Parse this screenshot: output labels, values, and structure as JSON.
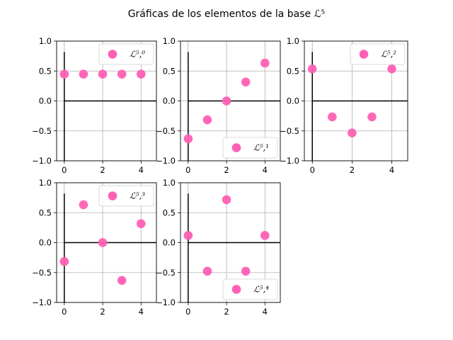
{
  "figure": {
    "title": "Gráficas de los elementos de la base ℒ⁵"
  },
  "colors": {
    "marker": "#ff5fb4",
    "grid": "#b0b0b0",
    "axis_lines": "#000000",
    "frame": "#000000"
  },
  "chart_data": [
    {
      "type": "scatter",
      "title": "",
      "legend": "ℒ⁵,⁰",
      "legend_loc": "upper right",
      "x": [
        0,
        1,
        2,
        3,
        4
      ],
      "y": [
        0.447,
        0.447,
        0.447,
        0.447,
        0.447
      ],
      "xlim": [
        -0.4,
        4.8
      ],
      "ylim": [
        -1.0,
        1.0
      ],
      "xticks": [
        "0",
        "2",
        "4"
      ],
      "yticks": [
        "1.0",
        "0.5",
        "0.0",
        "−0.5",
        "−1.0"
      ],
      "grid": true
    },
    {
      "type": "scatter",
      "title": "",
      "legend": "ℒ⁵,¹",
      "legend_loc": "lower right",
      "x": [
        0,
        1,
        2,
        3,
        4
      ],
      "y": [
        -0.632,
        -0.316,
        0.0,
        0.316,
        0.632
      ],
      "xlim": [
        -0.4,
        4.8
      ],
      "ylim": [
        -1.0,
        1.0
      ],
      "xticks": [
        "0",
        "2",
        "4"
      ],
      "yticks": [
        "1.0",
        "0.5",
        "0.0",
        "−0.5",
        "−1.0"
      ],
      "grid": true
    },
    {
      "type": "scatter",
      "title": "",
      "legend": "ℒ⁵,²",
      "legend_loc": "upper right",
      "x": [
        0,
        1,
        2,
        3,
        4
      ],
      "y": [
        0.535,
        -0.267,
        -0.535,
        -0.267,
        0.535
      ],
      "xlim": [
        -0.4,
        4.8
      ],
      "ylim": [
        -1.0,
        1.0
      ],
      "xticks": [
        "0",
        "2",
        "4"
      ],
      "yticks": [
        "1.0",
        "0.5",
        "0.0",
        "−0.5",
        "−1.0"
      ],
      "grid": true
    },
    {
      "type": "scatter",
      "title": "",
      "legend": "ℒ⁵,³",
      "legend_loc": "upper right",
      "x": [
        0,
        1,
        2,
        3,
        4
      ],
      "y": [
        -0.316,
        0.632,
        0.0,
        -0.632,
        0.316
      ],
      "xlim": [
        -0.4,
        4.8
      ],
      "ylim": [
        -1.0,
        1.0
      ],
      "xticks": [
        "0",
        "2",
        "4"
      ],
      "yticks": [
        "1.0",
        "0.5",
        "0.0",
        "−0.5",
        "−1.0"
      ],
      "grid": true
    },
    {
      "type": "scatter",
      "title": "",
      "legend": "ℒ⁵,⁴",
      "legend_loc": "lower right",
      "x": [
        0,
        1,
        2,
        3,
        4
      ],
      "y": [
        0.12,
        -0.478,
        0.717,
        -0.478,
        0.12
      ],
      "xlim": [
        -0.4,
        4.8
      ],
      "ylim": [
        -1.0,
        1.0
      ],
      "xticks": [
        "0",
        "2",
        "4"
      ],
      "yticks": [
        "1.0",
        "0.5",
        "0.0",
        "−0.5",
        "−1.0"
      ],
      "grid": true
    }
  ]
}
